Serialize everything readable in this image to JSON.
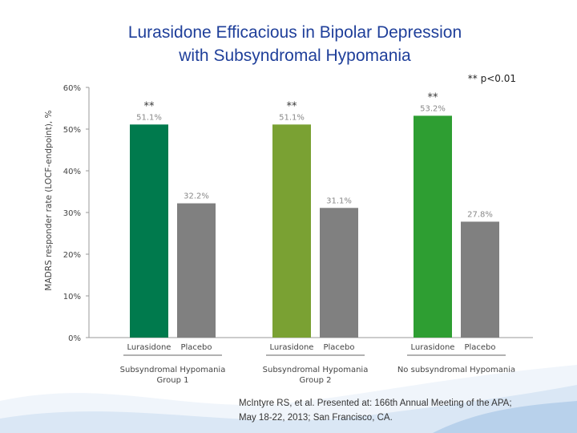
{
  "slide": {
    "title_line1": "Lurasidone Efficacious in Bipolar Depression",
    "title_line2": "with Subsyndromal Hypomania",
    "significance_note": "** p<0.01",
    "citation_line1": "McIntyre RS, et al. Presented at: 166th Annual Meeting of the APA;",
    "citation_line2": "May 18-22, 2013; San Francisco, CA."
  },
  "chart_data": {
    "type": "bar",
    "ylabel": "MADRS responder rate (LOCF-endpoint), %",
    "ylim": [
      0,
      60
    ],
    "yticks": [
      0,
      10,
      20,
      30,
      40,
      50,
      60
    ],
    "ytick_labels": [
      "0%",
      "10%",
      "20%",
      "30%",
      "40%",
      "50%",
      "60%"
    ],
    "grid": false,
    "groups": [
      {
        "label_line1": "Subsyndromal Hypomania",
        "label_line2": "Group 1",
        "bars": [
          {
            "label": "Lurasidone",
            "value": 51.1,
            "value_label": "51.1%",
            "significance": "**",
            "color": "#007a4d"
          },
          {
            "label": "Placebo",
            "value": 32.2,
            "value_label": "32.2%",
            "significance": "",
            "color": "#808080"
          }
        ]
      },
      {
        "label_line1": "Subsyndromal Hypomania",
        "label_line2": "Group 2",
        "bars": [
          {
            "label": "Lurasidone",
            "value": 51.1,
            "value_label": "51.1%",
            "significance": "**",
            "color": "#7aa133"
          },
          {
            "label": "Placebo",
            "value": 31.1,
            "value_label": "31.1%",
            "significance": "",
            "color": "#808080"
          }
        ]
      },
      {
        "label_line1": "No subsyndromal Hypomania",
        "label_line2": "",
        "bars": [
          {
            "label": "Lurasidone",
            "value": 53.2,
            "value_label": "53.2%",
            "significance": "**",
            "color": "#2e9e32"
          },
          {
            "label": "Placebo",
            "value": 27.8,
            "value_label": "27.8%",
            "significance": "",
            "color": "#808080"
          }
        ]
      }
    ],
    "colors": {
      "axis": "#9a9a9a",
      "tick_label": "#444444",
      "significance": "#333333",
      "title": "#1f3f9a"
    }
  }
}
